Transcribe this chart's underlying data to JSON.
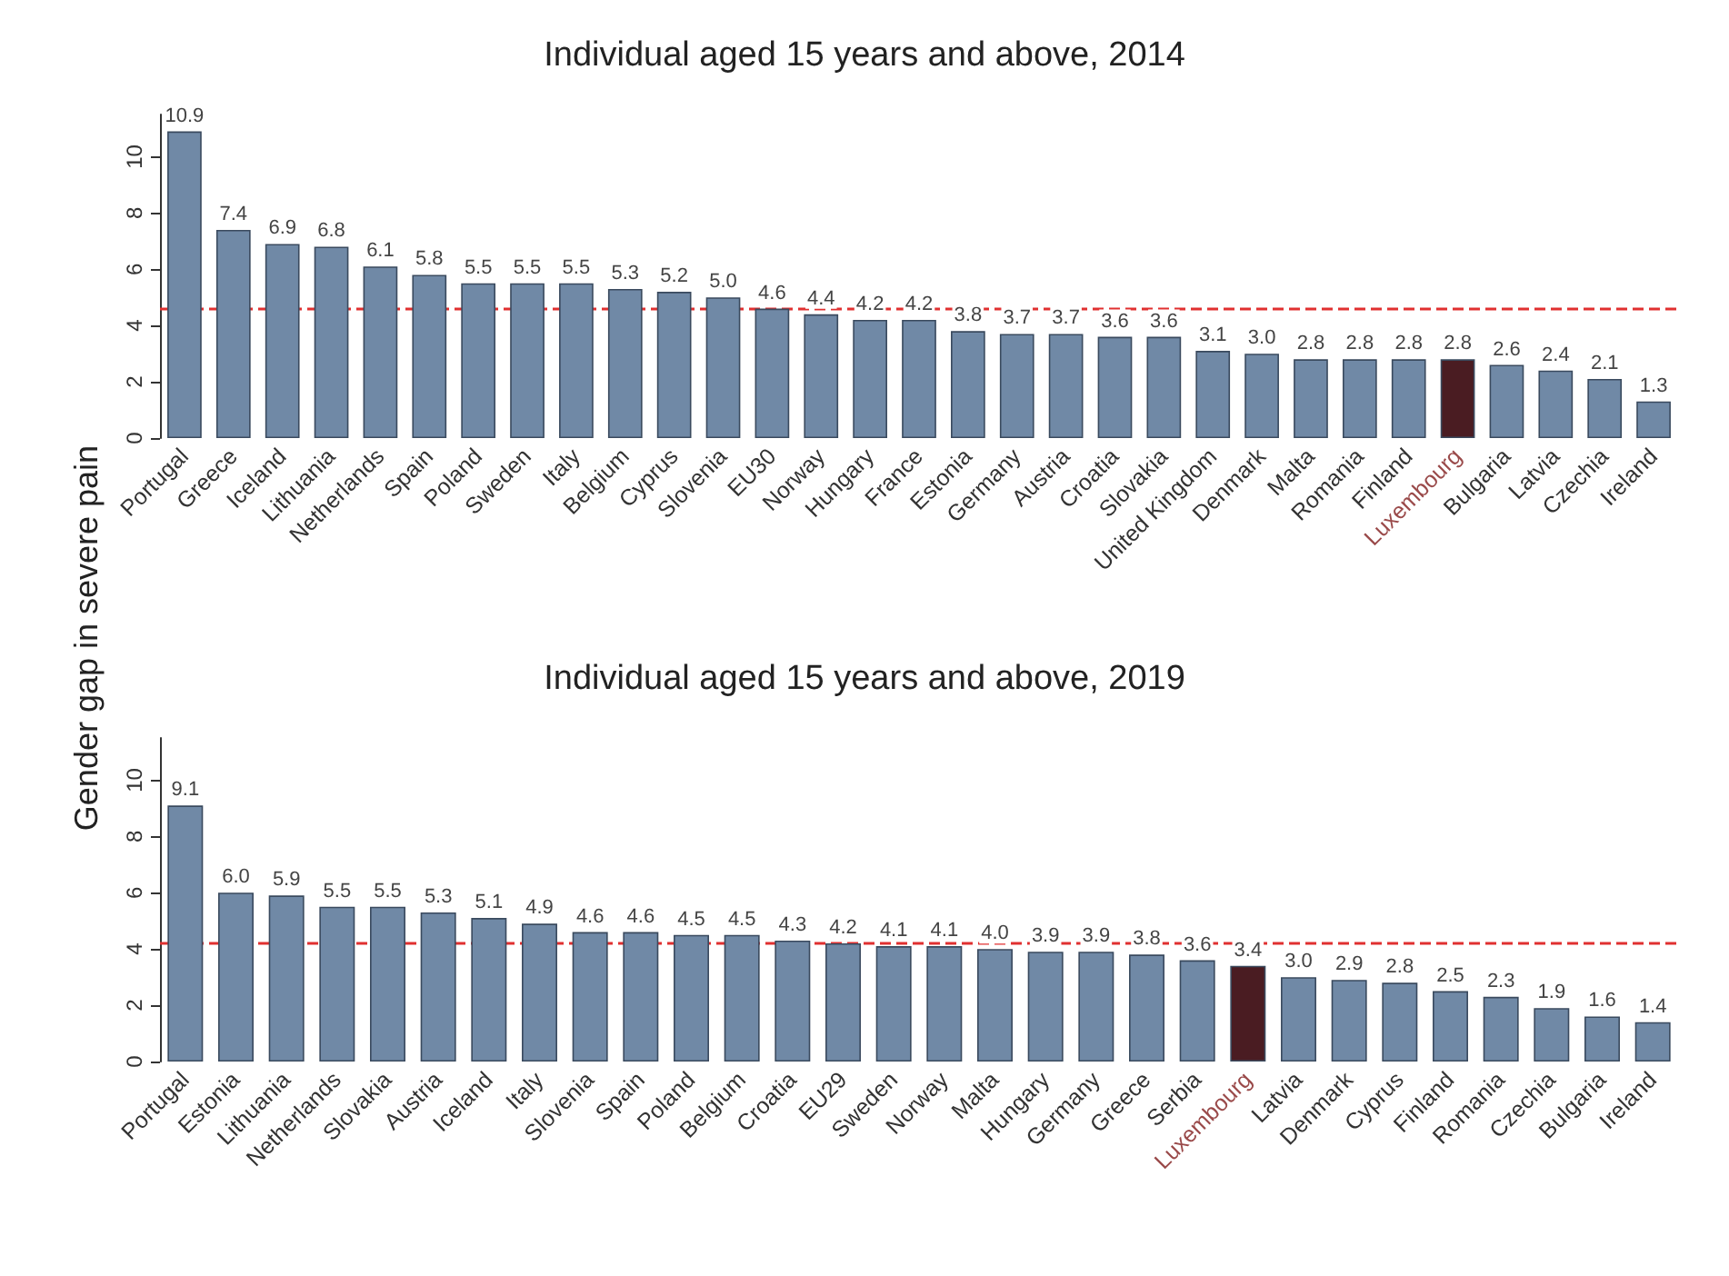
{
  "chart_data": [
    {
      "type": "bar",
      "title": "Individual aged 15 years and above, 2014",
      "ylabel": "Gender gap in severe pain",
      "categories": [
        "Portugal",
        "Greece",
        "Iceland",
        "Lithuania",
        "Netherlands",
        "Spain",
        "Poland",
        "Sweden",
        "Italy",
        "Belgium",
        "Cyprus",
        "Slovenia",
        "EU30",
        "Norway",
        "Hungary",
        "France",
        "Estonia",
        "Germany",
        "Austria",
        "Croatia",
        "Slovakia",
        "United Kingdom",
        "Denmark",
        "Malta",
        "Romania",
        "Finland",
        "Luxembourg",
        "Bulgaria",
        "Latvia",
        "Czechia",
        "Ireland"
      ],
      "values": [
        10.9,
        7.4,
        6.9,
        6.8,
        6.1,
        5.8,
        5.5,
        5.5,
        5.5,
        5.3,
        5.2,
        5.0,
        4.6,
        4.4,
        4.2,
        4.2,
        3.8,
        3.7,
        3.7,
        3.6,
        3.6,
        3.1,
        3.0,
        2.8,
        2.8,
        2.8,
        2.8,
        2.6,
        2.4,
        2.1,
        1.3
      ],
      "colors": [
        "#7089a6",
        "#7089a6",
        "#7089a6",
        "#7089a6",
        "#7089a6",
        "#7089a6",
        "#7089a6",
        "#7089a6",
        "#7089a6",
        "#7089a6",
        "#7089a6",
        "#7089a6",
        "#7089a6",
        "#7089a6",
        "#7089a6",
        "#7089a6",
        "#7089a6",
        "#7089a6",
        "#7089a6",
        "#7089a6",
        "#7089a6",
        "#7089a6",
        "#7089a6",
        "#7089a6",
        "#7089a6",
        "#7089a6",
        "#4a1c22",
        "#7089a6",
        "#7089a6",
        "#7089a6",
        "#7089a6"
      ],
      "ylim": [
        0,
        11.5
      ],
      "yticks": [
        0,
        2,
        4,
        6,
        8,
        10
      ],
      "grid": false,
      "value_labels": [
        "10.9",
        "7.4",
        "6.9",
        "6.8",
        "6.1",
        "5.8",
        "5.5",
        "5.5",
        "5.5",
        "5.3",
        "5.2",
        "5.0",
        "4.6",
        "4.4",
        "4.2",
        "4.2",
        "3.8",
        "3.7",
        "3.7",
        "3.6",
        "3.6",
        "3.1",
        "3.0",
        "2.8",
        "2.8",
        "2.8",
        "2.8",
        "2.6",
        "2.4",
        "2.1",
        "1.3"
      ],
      "ref_lines": [
        {
          "axis": "y",
          "value": 4.6,
          "color": "#e03030",
          "line_style": "dashed"
        }
      ]
    },
    {
      "type": "bar",
      "title": "Individual aged 15 years and above, 2019",
      "categories": [
        "Portugal",
        "Estonia",
        "Lithuania",
        "Netherlands",
        "Slovakia",
        "Austria",
        "Iceland",
        "Italy",
        "Slovenia",
        "Spain",
        "Poland",
        "Belgium",
        "Croatia",
        "EU29",
        "Sweden",
        "Norway",
        "Malta",
        "Hungary",
        "Germany",
        "Greece",
        "Serbia",
        "Luxembourg",
        "Latvia",
        "Denmark",
        "Cyprus",
        "Finland",
        "Romania",
        "Czechia",
        "Bulgaria",
        "Ireland"
      ],
      "values": [
        9.1,
        6.0,
        5.9,
        5.5,
        5.5,
        5.3,
        5.1,
        4.9,
        4.6,
        4.6,
        4.5,
        4.5,
        4.3,
        4.2,
        4.1,
        4.1,
        4.0,
        3.9,
        3.9,
        3.8,
        3.6,
        3.4,
        3.0,
        2.9,
        2.8,
        2.5,
        2.3,
        1.9,
        1.6,
        1.4
      ],
      "colors": [
        "#7089a6",
        "#7089a6",
        "#7089a6",
        "#7089a6",
        "#7089a6",
        "#7089a6",
        "#7089a6",
        "#7089a6",
        "#7089a6",
        "#7089a6",
        "#7089a6",
        "#7089a6",
        "#7089a6",
        "#7089a6",
        "#7089a6",
        "#7089a6",
        "#7089a6",
        "#7089a6",
        "#7089a6",
        "#7089a6",
        "#7089a6",
        "#4a1c22",
        "#7089a6",
        "#7089a6",
        "#7089a6",
        "#7089a6",
        "#7089a6",
        "#7089a6",
        "#7089a6",
        "#7089a6"
      ],
      "ylim": [
        0,
        11.5
      ],
      "yticks": [
        0,
        2,
        4,
        6,
        8,
        10
      ],
      "grid": false,
      "value_labels": [
        "9.1",
        "6.0",
        "5.9",
        "5.5",
        "5.5",
        "5.3",
        "5.1",
        "4.9",
        "4.6",
        "4.6",
        "4.5",
        "4.5",
        "4.3",
        "4.2",
        "4.1",
        "4.1",
        "4.0",
        "3.9",
        "3.9",
        "3.8",
        "3.6",
        "3.4",
        "3.0",
        "2.9",
        "2.8",
        "2.5",
        "2.3",
        "1.9",
        "1.6",
        "1.4"
      ],
      "ref_lines": [
        {
          "axis": "y",
          "value": 4.2,
          "color": "#e03030",
          "line_style": "dashed"
        }
      ]
    }
  ]
}
